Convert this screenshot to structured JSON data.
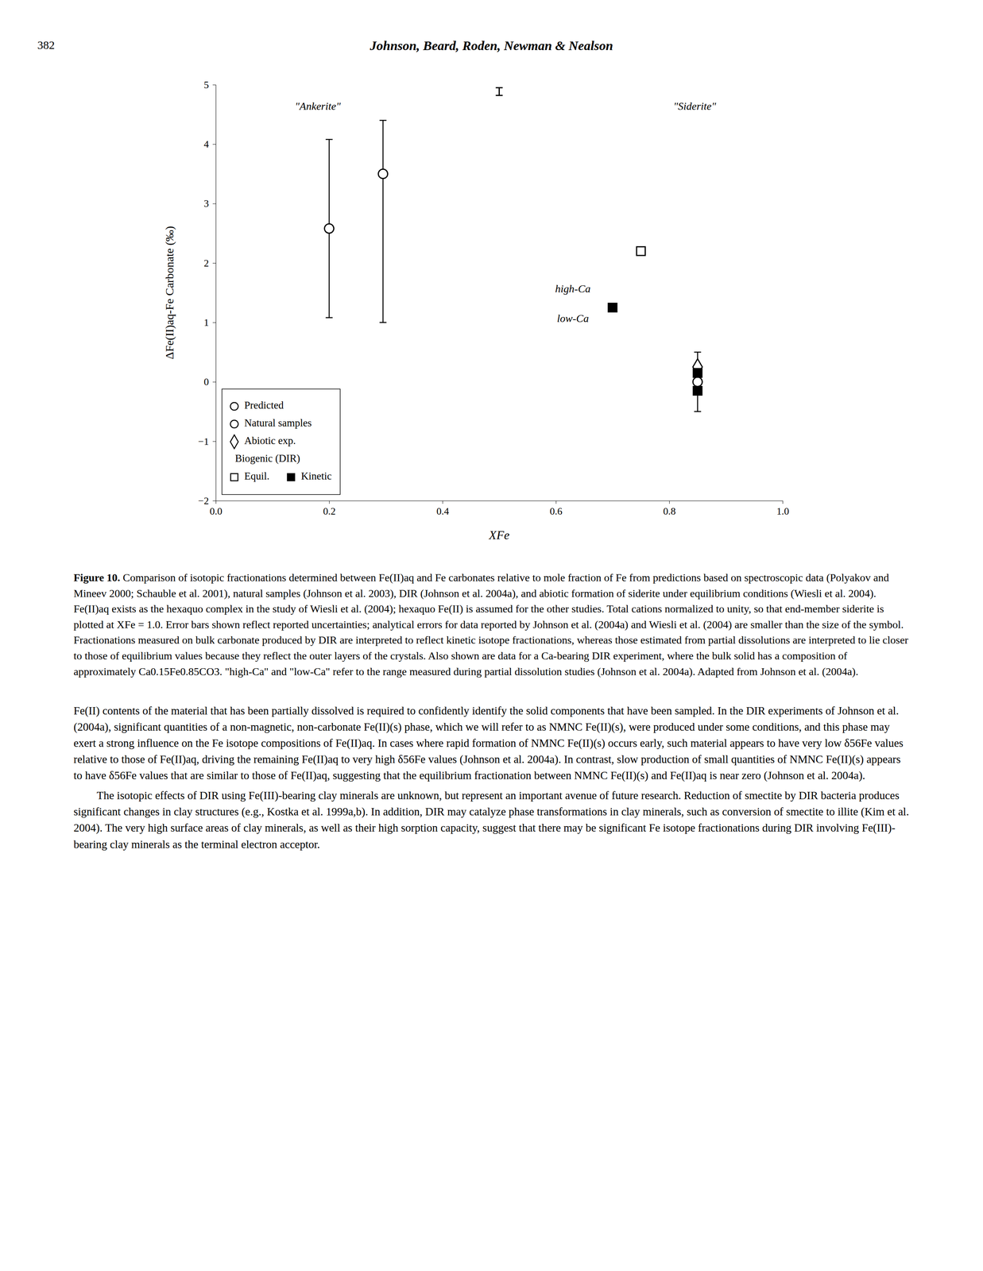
{
  "page_number": "382",
  "title_page": "Johnson, Beard, Roden, Newman & Nealson",
  "chart_data": {
    "type": "scatter",
    "xlabel": "XFe",
    "ylabel": "ΔFe(II)aq-Fe Carbonate (‰)",
    "xlim": [
      0.0,
      1.0
    ],
    "ylim": [
      -2.0,
      5.0
    ],
    "xticks": [
      {
        "value": 0.0,
        "label": "0.0"
      },
      0.2,
      0.4,
      0.6,
      0.8,
      {
        "value": 1.0,
        "label": "1.0"
      }
    ],
    "yticks": [
      {
        "value": -2.0,
        "label": "−2"
      },
      {
        "value": -1.0,
        "label": "−1"
      },
      0,
      1,
      2,
      3,
      4,
      5
    ],
    "grid": false,
    "legend": "lower left",
    "color": "#000000",
    "series": [
      {
        "name": "Predicted",
        "marker": "circle-open",
        "x": [
          0.85
        ],
        "values": [
          0.0
        ],
        "yerr_low": [
          0.5
        ],
        "yerr_high": [
          0.5
        ],
        "ranges": [
          {
            "x": 0.5,
            "low": 4.82,
            "high": 4.95
          }
        ]
      },
      {
        "name": "Natural samples",
        "marker": "circle-open",
        "x": [
          0.2,
          0.295
        ],
        "values": [
          2.58,
          3.5
        ],
        "yerr_low": [
          1.5,
          2.5
        ],
        "yerr_high": [
          1.5,
          0.9
        ]
      },
      {
        "name": "Abiotic exp.",
        "marker": "diamond-open",
        "x": [
          0.85
        ],
        "values": [
          0.25
        ]
      },
      {
        "name": "Equil.",
        "group": "Biogenic (DIR)",
        "marker": "square-open",
        "x": [
          0.75
        ],
        "values": [
          2.2
        ]
      },
      {
        "name": "Kinetic",
        "group": "Biogenic (DIR)",
        "marker": "square-filled",
        "x": [
          0.7,
          0.85,
          0.85
        ],
        "values": [
          1.25,
          0.15,
          -0.15
        ]
      }
    ],
    "annotations": [
      {
        "text": "\"Ankerite\"",
        "x": 0.18,
        "y": 4.62
      },
      {
        "text": "\"Siderite\"",
        "x": 0.845,
        "y": 4.62
      },
      {
        "text": "high-Ca",
        "x": 0.63,
        "y": 1.55
      },
      {
        "text": "low-Ca",
        "x": 0.63,
        "y": 1.05
      }
    ]
  },
  "figure_label": "Figure 10.",
  "figure_caption": "Comparison of isotopic fractionations determined between Fe(II)aq and Fe carbonates relative to mole fraction of Fe from predictions based on spectroscopic data (Polyakov and Mineev 2000; Schauble et al. 2001), natural samples (Johnson et al. 2003), DIR (Johnson et al. 2004a), and abiotic formation of siderite under equilibrium conditions (Wiesli et al. 2004). Fe(II)aq exists as the hexaquo complex in the study of Wiesli et al. (2004); hexaquo Fe(II) is assumed for the other studies. Total cations normalized to unity, so that end-member siderite is plotted at XFe = 1.0. Error bars shown reflect reported uncertainties; analytical errors for data reported by Johnson et al. (2004a) and Wiesli et al. (2004) are smaller than the size of the symbol. Fractionations measured on bulk carbonate produced by DIR are interpreted to reflect kinetic isotope fractionations, whereas those estimated from partial dissolutions are interpreted to lie closer to those of equilibrium values because they reflect the outer layers of the crystals. Also shown are data for a Ca-bearing DIR experiment, where the bulk solid has a composition of approximately Ca0.15Fe0.85CO3. \"high-Ca\" and \"low-Ca\" refer to the range measured during partial dissolution studies (Johnson et al. 2004a). Adapted from Johnson et al. (2004a).",
  "body_text_1": "Fe(II) contents of the material that has been partially dissolved is required to confidently identify the solid components that have been sampled. In the DIR experiments of Johnson et al. (2004a), significant quantities of a non-magnetic, non-carbonate Fe(II)(s) phase, which we will refer to as NMNC Fe(II)(s), were produced under some conditions, and this phase may exert a strong influence on the Fe isotope compositions of Fe(II)aq. In cases where rapid formation of NMNC Fe(II)(s) occurs early, such material appears to have very low δ56Fe values relative to those of Fe(II)aq, driving the remaining Fe(II)aq to very high δ56Fe values (Johnson et al. 2004a). In contrast, slow production of small quantities of NMNC Fe(II)(s) appears to have δ56Fe values that are similar to those of Fe(II)aq, suggesting that the equilibrium fractionation between NMNC Fe(II)(s) and Fe(II)aq is near zero (Johnson et al. 2004a).",
  "body_text_2": "The isotopic effects of DIR using Fe(III)-bearing clay minerals are unknown, but represent an important avenue of future research. Reduction of smectite by DIR bacteria produces significant changes in clay structures (e.g., Kostka et al. 1999a,b). In addition, DIR may catalyze phase transformations in clay minerals, such as conversion of smectite to illite (Kim et al. 2004). The very high surface areas of clay minerals, as well as their high sorption capacity, suggest that there may be significant Fe isotope fractionations during DIR involving Fe(III)-bearing clay minerals as the terminal electron acceptor."
}
